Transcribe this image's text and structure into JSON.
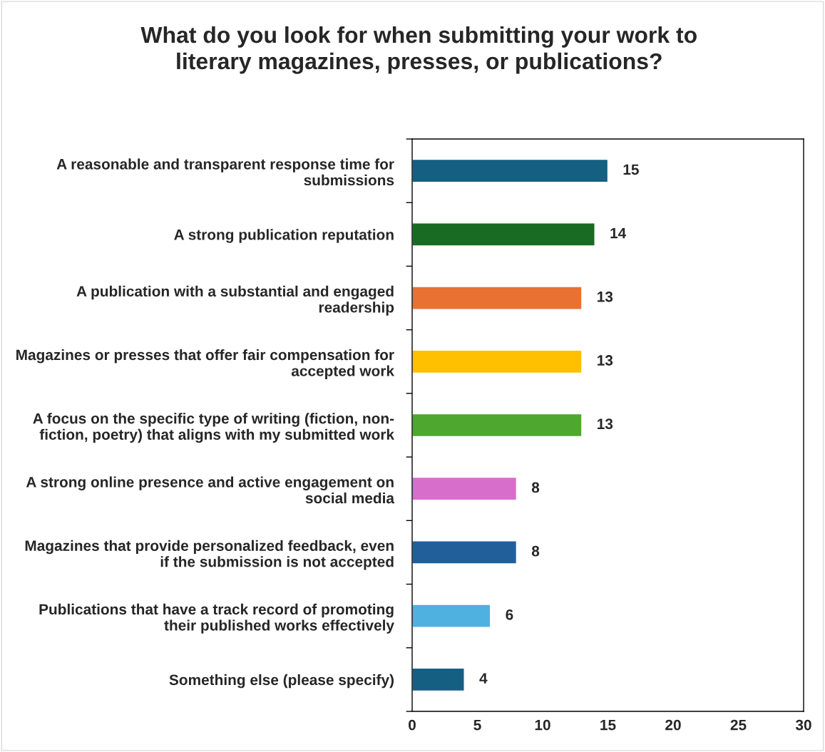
{
  "chart_data": {
    "type": "bar",
    "orientation": "horizontal",
    "title": "What do you look for when submitting your work to\nliterary magazines, presses, or publications?",
    "categories": [
      "A reasonable and transparent response time for\nsubmissions",
      "A strong publication reputation",
      "A publication with a substantial and engaged\nreadership",
      "Magazines or presses that offer fair compensation for\naccepted work",
      "A focus on the specific type of writing (fiction, non-\nfiction, poetry) that aligns with my submitted work",
      "A strong online presence and active engagement on\nsocial media",
      "Magazines that provide personalized feedback, even\nif the submission is not accepted",
      "Publications that have a track record of promoting\ntheir published works effectively",
      "Something else (please specify)"
    ],
    "values": [
      15,
      14,
      13,
      13,
      13,
      8,
      8,
      6,
      4
    ],
    "colors": [
      "#156082",
      "#196b24",
      "#e97132",
      "#ffc000",
      "#4ea72e",
      "#d86ecc",
      "#215f9a",
      "#4eb1e0",
      "#156082"
    ],
    "xlim": [
      0,
      30
    ],
    "xticks": [
      0,
      5,
      10,
      15,
      20,
      25,
      30
    ],
    "data_labels": true,
    "grid": false,
    "legend": false
  }
}
